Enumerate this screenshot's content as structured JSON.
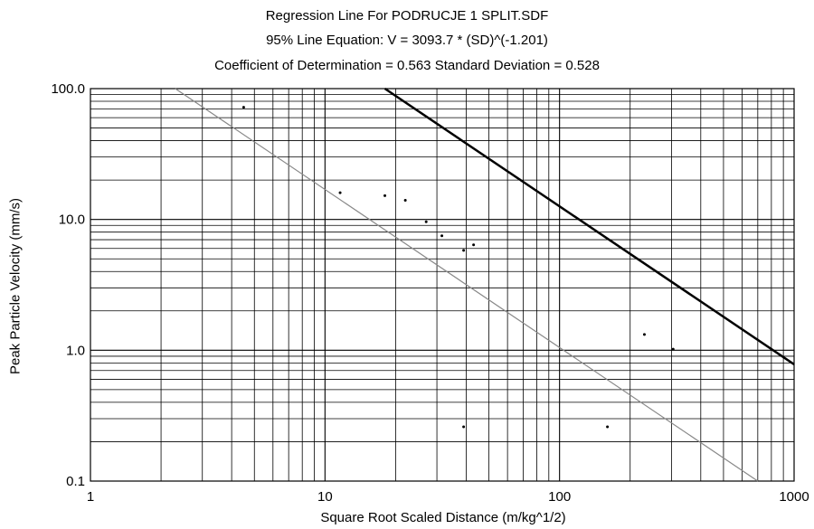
{
  "chart_data": {
    "type": "scatter",
    "title": "Regression Line For PODRUCJE 1 SPLIT.SDF",
    "subtitle": "95% Line Equation: V = 3093.7 * (SD)^(-1.201)",
    "subtitle2": "Coefficient of Determination = 0.563  Standard Deviation = 0.528",
    "xlabel": "Square Root Scaled Distance (m/kg^1/2)",
    "ylabel": "Peak Particle Velocity (mm/s)",
    "xscale": "log",
    "yscale": "log",
    "xlim": [
      1,
      1000
    ],
    "ylim": [
      0.1,
      100
    ],
    "xticks": [
      "1",
      "10",
      "100",
      "1000"
    ],
    "yticks": [
      "0.1",
      "1.0",
      "10.0",
      "100.0"
    ],
    "grid": true,
    "points": [
      {
        "x": 4.5,
        "y": 72
      },
      {
        "x": 11.6,
        "y": 16
      },
      {
        "x": 18,
        "y": 15.2
      },
      {
        "x": 22,
        "y": 14
      },
      {
        "x": 27,
        "y": 9.6
      },
      {
        "x": 31.5,
        "y": 7.5
      },
      {
        "x": 39,
        "y": 5.8
      },
      {
        "x": 43,
        "y": 6.4
      },
      {
        "x": 39,
        "y": 0.26
      },
      {
        "x": 160,
        "y": 0.26
      },
      {
        "x": 230,
        "y": 1.32
      },
      {
        "x": 305,
        "y": 1.02
      }
    ],
    "lines": [
      {
        "style": "95% line",
        "color": "#000000",
        "x": [
          18,
          1000
        ],
        "y": [
          100,
          0.78
        ]
      },
      {
        "style": "regression line",
        "color": "#888888",
        "x": [
          2.3,
          700
        ],
        "y": [
          100,
          0.1
        ]
      }
    ]
  }
}
